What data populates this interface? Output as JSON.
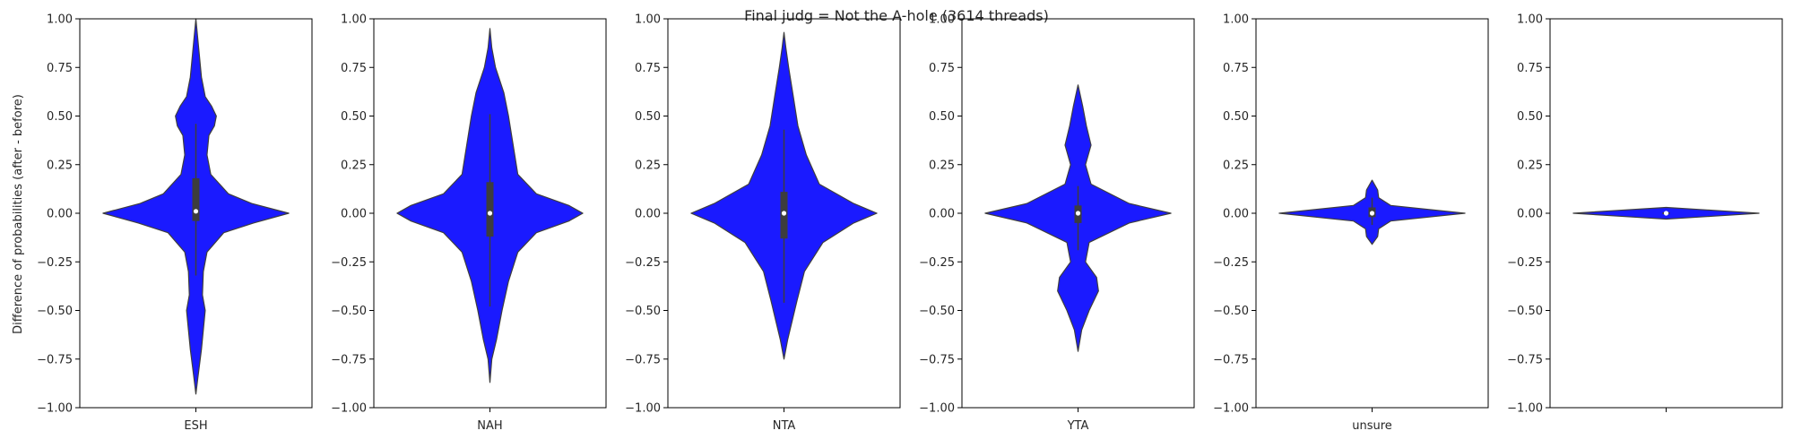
{
  "chart_data": {
    "type": "violin",
    "title": "Final judg = Not the A-hole (3614 threads)",
    "ylabel": "Difference of probabilities (after - before)",
    "ylim": [
      -1.0,
      1.0
    ],
    "yticks": [
      1.0,
      0.75,
      0.5,
      0.25,
      0.0,
      -0.25,
      -0.5,
      -0.75,
      -1.0
    ],
    "ytick_labels": [
      "1.00",
      "0.75",
      "0.50",
      "0.25",
      "0.00",
      "−0.25",
      "−0.50",
      "−0.75",
      "−1.00"
    ],
    "fill_color": "#1a1aff",
    "grid": false,
    "panels": [
      {
        "category": "ESH",
        "y": [
          -0.93,
          -0.85,
          -0.7,
          -0.6,
          -0.5,
          -0.42,
          -0.3,
          -0.2,
          -0.1,
          -0.05,
          0.0,
          0.05,
          0.1,
          0.2,
          0.3,
          0.4,
          0.45,
          0.5,
          0.55,
          0.6,
          0.7,
          0.85,
          1.0
        ],
        "width": [
          0.0,
          0.02,
          0.06,
          0.08,
          0.1,
          0.07,
          0.08,
          0.12,
          0.3,
          0.62,
          1.0,
          0.6,
          0.35,
          0.16,
          0.12,
          0.14,
          0.2,
          0.22,
          0.17,
          0.1,
          0.06,
          0.03,
          0.0
        ],
        "q1": -0.04,
        "median": 0.01,
        "q3": 0.18,
        "whisker_low": -0.32,
        "whisker_high": 0.46
      },
      {
        "category": "NAH",
        "y": [
          -0.87,
          -0.75,
          -0.65,
          -0.5,
          -0.35,
          -0.2,
          -0.1,
          -0.04,
          0.0,
          0.04,
          0.1,
          0.2,
          0.35,
          0.5,
          0.62,
          0.75,
          0.85,
          0.95
        ],
        "width": [
          0.0,
          0.02,
          0.07,
          0.13,
          0.2,
          0.3,
          0.5,
          0.85,
          1.0,
          0.85,
          0.5,
          0.3,
          0.25,
          0.2,
          0.15,
          0.06,
          0.02,
          0.0
        ],
        "q1": -0.12,
        "median": 0.0,
        "q3": 0.16,
        "whisker_low": -0.48,
        "whisker_high": 0.51
      },
      {
        "category": "NTA",
        "y": [
          -0.75,
          -0.65,
          -0.55,
          -0.45,
          -0.3,
          -0.15,
          -0.05,
          0.0,
          0.05,
          0.15,
          0.3,
          0.45,
          0.6,
          0.75,
          0.85,
          0.93
        ],
        "width": [
          0.0,
          0.04,
          0.09,
          0.14,
          0.22,
          0.42,
          0.75,
          1.0,
          0.75,
          0.38,
          0.24,
          0.15,
          0.1,
          0.05,
          0.02,
          0.0
        ],
        "q1": -0.13,
        "median": 0.0,
        "q3": 0.11,
        "whisker_low": -0.46,
        "whisker_high": 0.43
      },
      {
        "category": "YTA",
        "y": [
          -0.71,
          -0.6,
          -0.5,
          -0.4,
          -0.33,
          -0.25,
          -0.15,
          -0.05,
          0.0,
          0.05,
          0.15,
          0.25,
          0.35,
          0.45,
          0.55,
          0.66
        ],
        "width": [
          0.0,
          0.04,
          0.12,
          0.22,
          0.2,
          0.08,
          0.12,
          0.55,
          1.0,
          0.55,
          0.14,
          0.08,
          0.14,
          0.09,
          0.05,
          0.0
        ],
        "q1": -0.05,
        "median": 0.0,
        "q3": 0.04,
        "whisker_low": -0.19,
        "whisker_high": 0.14
      },
      {
        "category": "unsure",
        "y": [
          -0.16,
          -0.12,
          -0.08,
          -0.04,
          0.0,
          0.04,
          0.08,
          0.12,
          0.17
        ],
        "width": [
          0.0,
          0.06,
          0.07,
          0.2,
          1.0,
          0.2,
          0.07,
          0.06,
          0.0
        ],
        "q1": -0.02,
        "median": 0.0,
        "q3": 0.03,
        "whisker_low": -0.06,
        "whisker_high": 0.08
      },
      {
        "category": "",
        "y": [
          -0.03,
          -0.015,
          0.0,
          0.015,
          0.03
        ],
        "width": [
          0.0,
          0.5,
          1.0,
          0.5,
          0.0
        ],
        "q1": -0.005,
        "median": 0.0,
        "q3": 0.005,
        "whisker_low": -0.01,
        "whisker_high": 0.01
      }
    ]
  }
}
